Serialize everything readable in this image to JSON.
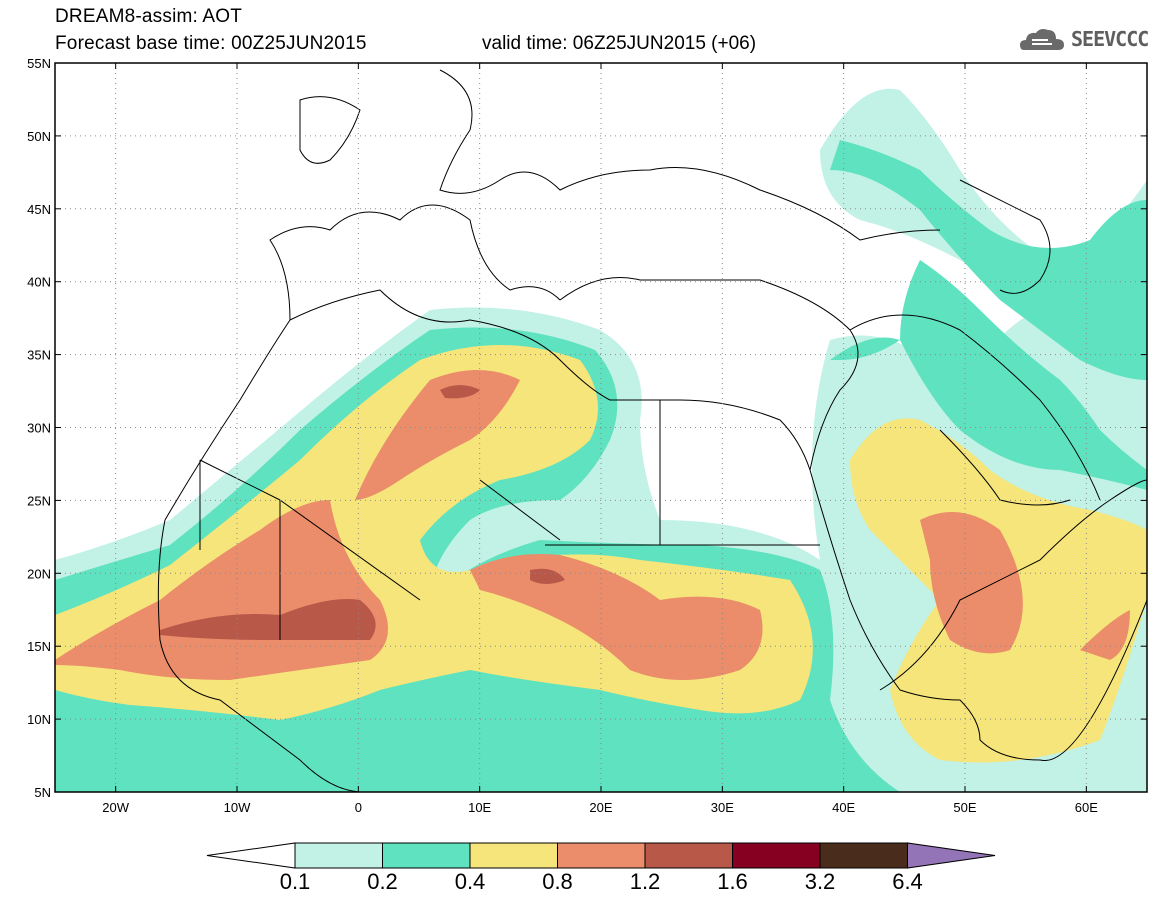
{
  "header": {
    "title": "DREAM8-assim: AOT",
    "base_time": "Forecast base time: 00Z25JUN2015",
    "valid_time": "valid time: 06Z25JUN2015 (+06)"
  },
  "logo": {
    "text": "SEEVCCC",
    "icon": "cloud-icon"
  },
  "map": {
    "lon_range": [
      -25,
      65
    ],
    "lat_range": [
      5,
      55
    ],
    "lat_ticks": [
      "55N",
      "50N",
      "45N",
      "40N",
      "35N",
      "30N",
      "25N",
      "20N",
      "15N",
      "10N",
      "5N"
    ],
    "lon_ticks": [
      "20W",
      "10W",
      "0",
      "10E",
      "20E",
      "30E",
      "40E",
      "50E",
      "60E"
    ]
  },
  "colorbar": {
    "labels": [
      "0.1",
      "0.2",
      "0.4",
      "0.8",
      "1.2",
      "1.6",
      "3.2",
      "6.4"
    ],
    "colors": [
      "#c2f1e6",
      "#5ee2c0",
      "#f5e57a",
      "#eb8c6a",
      "#b85848",
      "#860022",
      "#4a2c1c",
      "#9374b6"
    ]
  }
}
